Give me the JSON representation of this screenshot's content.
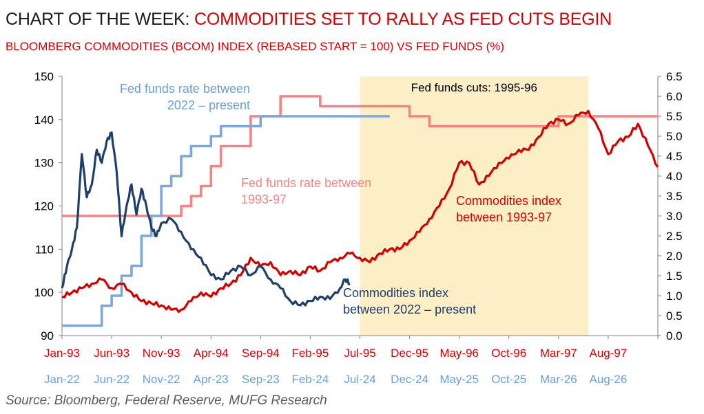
{
  "title": {
    "lead": "CHART OF THE WEEK:",
    "rest": "COMMODITIES SET TO RALLY AS FED CUTS BEGIN"
  },
  "subtitle": "BLOOMBERG COMMODITIES (BCOM) INDEX (REBASED START = 100) VS FED FUNDS (%)",
  "source": "Source: Bloomberg, Federal Reserve, MUFG Research",
  "colors": {
    "red": "#d40000",
    "navy": "#1f3f6b",
    "light_blue": "#7aa8de",
    "pink": "#f58383",
    "shade": "#fcefc6",
    "axis_text_blue": "#6aa0d8"
  },
  "chart_data": {
    "type": "line",
    "left_axis": {
      "ylim": [
        90,
        150
      ],
      "ticks": [
        "90",
        "100",
        "110",
        "120",
        "130",
        "140",
        "150"
      ]
    },
    "right_axis": {
      "ylim": [
        0,
        6.5
      ],
      "ticks": [
        "0.0",
        "0.5",
        "1.0",
        "1.5",
        "2.0",
        "2.5",
        "3.0",
        "3.5",
        "4.0",
        "4.5",
        "5.0",
        "5.5",
        "6.0",
        "6.5"
      ]
    },
    "x_span_months": 60,
    "x_ticks_1993": [
      "Jan-93",
      "Jun-93",
      "Nov-93",
      "Apr-94",
      "Sep-94",
      "Feb-95",
      "Jul-95",
      "Dec-95",
      "May-96",
      "Oct-96",
      "Mar-97",
      "Aug-97"
    ],
    "x_ticks_2022": [
      "Jan-22",
      "Jun-22",
      "Nov-22",
      "Apr-23",
      "Sep-23",
      "Feb-24",
      "Jul-24",
      "Dec-24",
      "May-25",
      "Oct-25",
      "Mar-26",
      "Aug-26"
    ],
    "shaded_region": {
      "label": "Fed funds cuts: 1995-96",
      "x": [
        30,
        53
      ]
    },
    "annotations": {
      "fed_2022": [
        "Fed funds rate between",
        "2022 – present"
      ],
      "fed_1993": [
        "Fed funds rate between",
        "1993-97"
      ],
      "comm_1993": [
        "Commodities index",
        "between 1993-97"
      ],
      "comm_2022": [
        "Commodities index",
        "between 2022 – present"
      ]
    },
    "series": [
      {
        "axis": "left",
        "x": [
          0,
          1,
          2,
          3,
          4,
          5,
          6,
          7,
          8,
          9,
          10,
          11,
          12,
          13,
          14,
          15,
          16,
          17,
          18,
          19,
          20,
          21,
          22,
          23,
          24,
          25,
          26,
          27,
          28,
          29,
          30,
          31,
          32,
          33,
          34,
          35,
          36,
          37,
          38,
          39,
          40,
          41,
          42,
          43,
          44,
          45,
          46,
          47,
          48,
          49,
          50,
          51,
          52,
          53,
          54,
          55,
          56,
          57,
          58,
          59,
          60
        ],
        "values": [
          99,
          100,
          101,
          102,
          103,
          101,
          102,
          100,
          98,
          97.5,
          97,
          96,
          96,
          98,
          100,
          99,
          101,
          102,
          104,
          108,
          106,
          107,
          104,
          105,
          104,
          106,
          105,
          107,
          108,
          109,
          108,
          107,
          109,
          110,
          110,
          112,
          114,
          117,
          120,
          124,
          130,
          130,
          125,
          127,
          130,
          131,
          133,
          133,
          136,
          139,
          140,
          139,
          141,
          142,
          138,
          132,
          135,
          136,
          139,
          134,
          129
        ]
      },
      {
        "axis": "left",
        "x": [
          0,
          0.5,
          1,
          1.5,
          2,
          2.5,
          3,
          3.5,
          4,
          4.5,
          5,
          5.5,
          6,
          6.5,
          7,
          7.5,
          8,
          8.5,
          9,
          9.5,
          10,
          11,
          12,
          13,
          14,
          15,
          16,
          17,
          18,
          19,
          20,
          21,
          22,
          23,
          24,
          25,
          26,
          27,
          28,
          28.5,
          29
        ],
        "values": [
          101,
          106,
          110,
          115,
          132,
          122,
          125,
          133,
          130,
          135,
          137,
          128,
          113,
          120,
          125,
          118,
          124,
          120,
          115,
          113,
          116,
          117,
          114,
          110,
          108,
          104,
          103,
          105,
          106,
          104,
          106,
          103,
          101,
          98,
          97,
          98,
          99,
          98.5,
          101,
          103,
          102
        ]
      },
      {
        "axis": "right",
        "step": true,
        "x": [
          0,
          12,
          13,
          14,
          15,
          16,
          19,
          22,
          25,
          26,
          29,
          30,
          35,
          37,
          50,
          60
        ],
        "values": [
          3.0,
          3.25,
          3.5,
          3.75,
          4.25,
          4.75,
          5.5,
          6.0,
          6.0,
          5.75,
          5.75,
          5.75,
          5.5,
          5.25,
          5.5,
          5.5
        ]
      },
      {
        "axis": "right",
        "step": true,
        "x": [
          0,
          2,
          4,
          5,
          6,
          7,
          8,
          9,
          10,
          11,
          12,
          13,
          14,
          15,
          16,
          18,
          20,
          22,
          24,
          26,
          28,
          30,
          31,
          33
        ],
        "values": [
          0.25,
          0.25,
          0.75,
          1.0,
          1.5,
          1.75,
          2.5,
          3.0,
          3.75,
          4.0,
          4.5,
          4.75,
          4.75,
          5.0,
          5.25,
          5.25,
          5.5,
          5.5,
          5.5,
          5.5,
          5.5,
          5.5,
          5.5,
          5.5
        ]
      }
    ]
  }
}
